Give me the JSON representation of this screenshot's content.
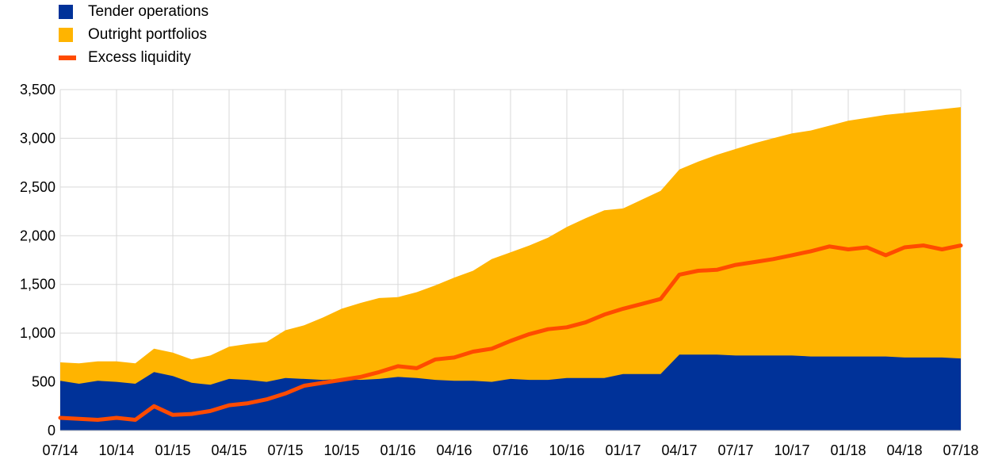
{
  "chart_data": {
    "type": "area",
    "title": "",
    "xlabel": "",
    "ylabel": "",
    "ylim": [
      0,
      3500
    ],
    "yticks": [
      "0",
      "500",
      "1,000",
      "1,500",
      "2,000",
      "2,500",
      "3,000",
      "3,500"
    ],
    "x_tick_labels": [
      "07/14",
      "10/14",
      "01/15",
      "04/15",
      "07/15",
      "10/15",
      "01/16",
      "04/16",
      "07/16",
      "10/16",
      "01/17",
      "04/17",
      "07/17",
      "10/17",
      "01/18",
      "04/18",
      "07/18"
    ],
    "grid": "vertical",
    "legend": "top-left",
    "x": [
      "2014-07",
      "2014-08",
      "2014-09",
      "2014-10",
      "2014-11",
      "2014-12",
      "2015-01",
      "2015-02",
      "2015-03",
      "2015-04",
      "2015-05",
      "2015-06",
      "2015-07",
      "2015-08",
      "2015-09",
      "2015-10",
      "2015-11",
      "2015-12",
      "2016-01",
      "2016-02",
      "2016-03",
      "2016-04",
      "2016-05",
      "2016-06",
      "2016-07",
      "2016-08",
      "2016-09",
      "2016-10",
      "2016-11",
      "2016-12",
      "2017-01",
      "2017-02",
      "2017-03",
      "2017-04",
      "2017-05",
      "2017-06",
      "2017-07",
      "2017-08",
      "2017-09",
      "2017-10",
      "2017-11",
      "2017-12",
      "2018-01",
      "2018-02",
      "2018-03",
      "2018-04",
      "2018-05",
      "2018-06",
      "2018-07"
    ],
    "series": [
      {
        "name": "Tender operations",
        "color": "#003299",
        "style": "stacked-area",
        "values": [
          510,
          480,
          510,
          500,
          480,
          600,
          560,
          490,
          470,
          530,
          520,
          500,
          540,
          530,
          520,
          530,
          520,
          530,
          550,
          540,
          520,
          510,
          510,
          500,
          530,
          520,
          520,
          540,
          540,
          540,
          580,
          580,
          580,
          780,
          780,
          780,
          770,
          770,
          770,
          770,
          760,
          760,
          760,
          760,
          760,
          750,
          750,
          750,
          740
        ]
      },
      {
        "name": "Outright portfolios",
        "color": "#FFB400",
        "style": "stacked-area",
        "values": [
          190,
          210,
          200,
          210,
          210,
          240,
          240,
          240,
          300,
          330,
          370,
          410,
          490,
          550,
          640,
          720,
          790,
          830,
          820,
          880,
          970,
          1060,
          1130,
          1260,
          1300,
          1380,
          1460,
          1550,
          1640,
          1720,
          1700,
          1790,
          1880,
          1900,
          1980,
          2050,
          2120,
          2180,
          2230,
          2280,
          2320,
          2370,
          2420,
          2450,
          2480,
          2510,
          2530,
          2550,
          2580
        ]
      },
      {
        "name": "Excess liquidity",
        "color": "#FF4B00",
        "style": "line",
        "values": [
          130,
          120,
          110,
          130,
          110,
          250,
          160,
          170,
          200,
          260,
          280,
          320,
          380,
          460,
          490,
          520,
          550,
          600,
          660,
          640,
          730,
          750,
          810,
          840,
          920,
          990,
          1040,
          1060,
          1110,
          1190,
          1250,
          1300,
          1350,
          1600,
          1640,
          1650,
          1700,
          1730,
          1760,
          1800,
          1840,
          1890,
          1860,
          1880,
          1800,
          1880,
          1900,
          1860,
          1900
        ]
      }
    ]
  }
}
